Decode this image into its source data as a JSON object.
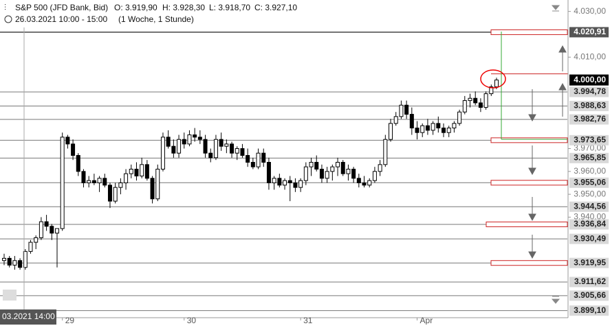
{
  "header": {
    "symbol": "S&P 500 (JFD Bank, Bid)",
    "open": "O: 3.919,90",
    "high": "H: 3.928,30",
    "low": "L: 3.918,70",
    "close": "C: 3.927,10",
    "period": "26.03.2021 10:00 - 15:00",
    "interval": "(1 Woche, 1 Stunde)"
  },
  "chart_data": {
    "type": "candlestick",
    "up_color": "#ffffff",
    "down_color": "#000000",
    "ylim": [
      3896,
      4035
    ],
    "yticks": [
      {
        "value": 4030,
        "label": "4.030,00"
      },
      {
        "value": 4010,
        "label": "4.010,00"
      },
      {
        "value": 3970,
        "label": "3.970,00"
      },
      {
        "value": 3960,
        "label": "3.960,00"
      },
      {
        "value": 3950,
        "label": "3.950,00"
      },
      {
        "value": 3940,
        "label": "3.940,00"
      }
    ],
    "levels": [
      {
        "value": 4020.91,
        "label": "4.020,91",
        "zone": true
      },
      {
        "value": 3994.78,
        "label": "3.994,78"
      },
      {
        "value": 3988.63,
        "label": "3.988,63"
      },
      {
        "value": 3982.76,
        "label": "3.982,76"
      },
      {
        "value": 3973.65,
        "label": "3.973,65",
        "zone": true
      },
      {
        "value": 3965.85,
        "label": "3.965,85"
      },
      {
        "value": 3955.06,
        "label": "3.955,06",
        "zone": true
      },
      {
        "value": 3944.56,
        "label": "3.944,56"
      },
      {
        "value": 3936.84,
        "label": "3.936,84",
        "zone": true
      },
      {
        "value": 3930.49,
        "label": "3.930,49"
      },
      {
        "value": 3919.95,
        "label": "3.919,95",
        "zone": true
      },
      {
        "value": 3911.62,
        "label": "3.911,62"
      },
      {
        "value": 3905.66,
        "label": "3.905,66"
      },
      {
        "value": 3899.1,
        "label": "3.899,10"
      }
    ],
    "last_price": {
      "value": 4000,
      "label": "4.000,00"
    },
    "crosshair_label": "03.2021 14:00",
    "categories": [
      null,
      null,
      null,
      null,
      null,
      null,
      null,
      null,
      null,
      null,
      null,
      "29",
      null,
      null,
      null,
      null,
      null,
      null,
      null,
      null,
      null,
      null,
      null,
      null,
      null,
      null,
      null,
      null,
      null,
      null,
      null,
      null,
      null,
      null,
      "30",
      null,
      null,
      null,
      null,
      null,
      null,
      null,
      null,
      null,
      null,
      null,
      null,
      null,
      null,
      null,
      null,
      null,
      null,
      null,
      null,
      null,
      "31",
      null,
      null,
      null,
      null,
      null,
      null,
      null,
      null,
      null,
      null,
      null,
      null,
      null,
      null,
      null,
      null,
      null,
      null,
      null,
      null,
      null,
      "Apr",
      null,
      null,
      null,
      null,
      null,
      null,
      null,
      null,
      null,
      null,
      null,
      null,
      null,
      null,
      null
    ],
    "ohlc": [
      [
        3921,
        3924,
        3919,
        3922
      ],
      [
        3922,
        3923,
        3918,
        3919
      ],
      [
        3919,
        3923,
        3917,
        3921
      ],
      [
        3921,
        3922,
        3917,
        3918
      ],
      [
        3918,
        3926,
        3917,
        3925
      ],
      [
        3925,
        3930,
        3924,
        3929
      ],
      [
        3929,
        3932,
        3926,
        3931
      ],
      [
        3931,
        3940,
        3930,
        3938
      ],
      [
        3938,
        3941,
        3934,
        3936
      ],
      [
        3936,
        3937,
        3930,
        3933
      ],
      [
        3933,
        3935,
        3918,
        3935
      ],
      [
        3935,
        3977,
        3934,
        3975
      ],
      [
        3975,
        3976,
        3970,
        3972
      ],
      [
        3972,
        3974,
        3965,
        3967
      ],
      [
        3967,
        3968,
        3958,
        3960
      ],
      [
        3960,
        3961,
        3953,
        3955
      ],
      [
        3955,
        3958,
        3953,
        3956
      ],
      [
        3956,
        3959,
        3954,
        3955
      ],
      [
        3955,
        3958,
        3951,
        3957
      ],
      [
        3957,
        3959,
        3953,
        3954
      ],
      [
        3954,
        3955,
        3944,
        3947
      ],
      [
        3947,
        3955,
        3946,
        3953
      ],
      [
        3953,
        3957,
        3950,
        3955
      ],
      [
        3955,
        3961,
        3952,
        3959
      ],
      [
        3959,
        3963,
        3957,
        3961
      ],
      [
        3961,
        3964,
        3956,
        3958
      ],
      [
        3958,
        3966,
        3957,
        3963
      ],
      [
        3963,
        3965,
        3956,
        3957
      ],
      [
        3957,
        3958,
        3946,
        3948
      ],
      [
        3948,
        3963,
        3947,
        3961
      ],
      [
        3961,
        3977,
        3960,
        3975
      ],
      [
        3975,
        3978,
        3970,
        3971
      ],
      [
        3971,
        3974,
        3966,
        3968
      ],
      [
        3968,
        3976,
        3966,
        3974
      ],
      [
        3974,
        3977,
        3970,
        3972
      ],
      [
        3972,
        3978,
        3971,
        3976
      ],
      [
        3976,
        3979,
        3973,
        3975
      ],
      [
        3975,
        3978,
        3972,
        3974
      ],
      [
        3974,
        3976,
        3966,
        3968
      ],
      [
        3968,
        3970,
        3964,
        3966
      ],
      [
        3966,
        3976,
        3965,
        3974
      ],
      [
        3974,
        3977,
        3969,
        3971
      ],
      [
        3971,
        3974,
        3968,
        3972
      ],
      [
        3972,
        3973,
        3966,
        3968
      ],
      [
        3968,
        3971,
        3965,
        3970
      ],
      [
        3970,
        3972,
        3966,
        3967
      ],
      [
        3967,
        3970,
        3962,
        3964
      ],
      [
        3964,
        3966,
        3961,
        3962
      ],
      [
        3962,
        3970,
        3961,
        3968
      ],
      [
        3968,
        3970,
        3962,
        3964
      ],
      [
        3964,
        3966,
        3952,
        3955
      ],
      [
        3955,
        3958,
        3952,
        3957
      ],
      [
        3957,
        3959,
        3953,
        3954
      ],
      [
        3954,
        3957,
        3952,
        3956
      ],
      [
        3956,
        3958,
        3947,
        3955
      ],
      [
        3955,
        3957,
        3951,
        3953
      ],
      [
        3953,
        3957,
        3951,
        3956
      ],
      [
        3956,
        3964,
        3954,
        3962
      ],
      [
        3962,
        3966,
        3958,
        3964
      ],
      [
        3964,
        3967,
        3960,
        3961
      ],
      [
        3961,
        3963,
        3955,
        3957
      ],
      [
        3957,
        3962,
        3955,
        3960
      ],
      [
        3960,
        3963,
        3956,
        3962
      ],
      [
        3962,
        3966,
        3958,
        3964
      ],
      [
        3964,
        3965,
        3958,
        3959
      ],
      [
        3959,
        3963,
        3956,
        3961
      ],
      [
        3961,
        3962,
        3955,
        3957
      ],
      [
        3957,
        3959,
        3953,
        3955
      ],
      [
        3955,
        3958,
        3953,
        3954
      ],
      [
        3954,
        3957,
        3953,
        3956
      ],
      [
        3956,
        3962,
        3955,
        3960
      ],
      [
        3960,
        3965,
        3958,
        3963
      ],
      [
        3963,
        3976,
        3962,
        3974
      ],
      [
        3974,
        3983,
        3973,
        3981
      ],
      [
        3981,
        3986,
        3980,
        3984
      ],
      [
        3984,
        3991,
        3983,
        3989
      ],
      [
        3989,
        3991,
        3983,
        3985
      ],
      [
        3985,
        3988,
        3976,
        3979
      ],
      [
        3979,
        3982,
        3974,
        3977
      ],
      [
        3977,
        3981,
        3975,
        3980
      ],
      [
        3980,
        3983,
        3976,
        3978
      ],
      [
        3978,
        3982,
        3976,
        3981
      ],
      [
        3981,
        3984,
        3977,
        3979
      ],
      [
        3979,
        3981,
        3975,
        3977
      ],
      [
        3977,
        3980,
        3975,
        3979
      ],
      [
        3979,
        3982,
        3977,
        3981
      ],
      [
        3981,
        3987,
        3980,
        3986
      ],
      [
        3986,
        3993,
        3985,
        3991
      ],
      [
        3991,
        3994,
        3988,
        3992
      ],
      [
        3992,
        3995,
        3989,
        3990
      ],
      [
        3990,
        3992,
        3986,
        3988
      ],
      [
        3988,
        3995,
        3987,
        3994
      ],
      [
        3994,
        3998,
        3993,
        3997
      ],
      [
        3997,
        4001,
        3996,
        4000
      ]
    ]
  }
}
